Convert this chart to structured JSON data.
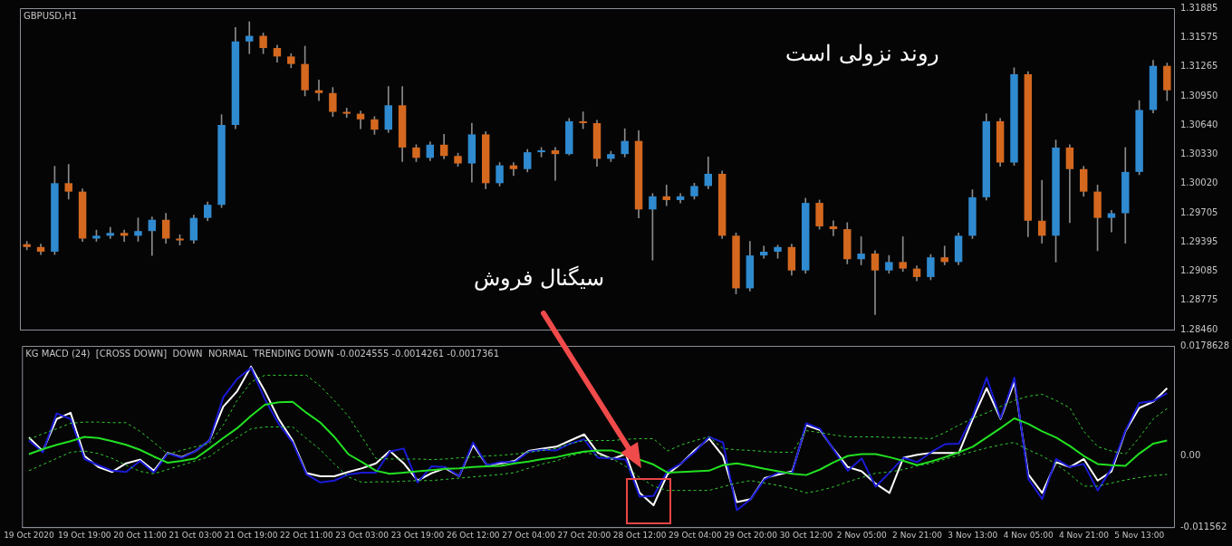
{
  "chart_data": [
    {
      "type": "candlestick",
      "title": "GBPUSD,H1",
      "annotations": [
        "روند نزولی است",
        "سیگنال فروش"
      ],
      "tick_labels": "y",
      "ylim": [
        1.2846,
        1.31885
      ],
      "categories": [
        null,
        null,
        null,
        null,
        null,
        null,
        null,
        null,
        null,
        null,
        null,
        null,
        null,
        null,
        null,
        null,
        null,
        null,
        null,
        null,
        null,
        null,
        null,
        null,
        null,
        null,
        null,
        null,
        null,
        null,
        null,
        null,
        null,
        null,
        null,
        null,
        null,
        null,
        null,
        null,
        null,
        null,
        null,
        null,
        null,
        null,
        null,
        null,
        null,
        null,
        null,
        null,
        null,
        null,
        null,
        null,
        null,
        null,
        null,
        null,
        null,
        null,
        null,
        null,
        null,
        null,
        null,
        null,
        null,
        null,
        null,
        null,
        null,
        null,
        null,
        null,
        null,
        null,
        null,
        null,
        null,
        null,
        null
      ],
      "yticks": [
        1.31885,
        1.31575,
        1.31265,
        {
          "value": 1.3095,
          "label": "1.30950"
        },
        {
          "value": 1.3064,
          "label": "1.30640"
        },
        {
          "value": 1.3033,
          "label": "1.30330"
        },
        {
          "value": 1.3002,
          "label": "1.30020"
        },
        1.29705,
        1.29395,
        1.29085,
        1.28775,
        {
          "value": 1.2846,
          "label": "1.28460"
        }
      ],
      "ohlc": [
        [
          1.2937,
          1.294,
          1.2931,
          1.2934
        ],
        [
          1.2934,
          1.2937,
          1.2926,
          1.2929
        ],
        [
          1.2929,
          1.302,
          1.2926,
          1.3002
        ],
        [
          1.3002,
          1.3022,
          1.2985,
          1.2993
        ],
        [
          1.2993,
          1.2996,
          1.294,
          1.2943
        ],
        [
          1.2943,
          1.2952,
          1.294,
          1.2946
        ],
        [
          1.2946,
          1.2955,
          1.2943,
          1.2949
        ],
        [
          1.2949,
          1.2952,
          1.294,
          1.2946
        ],
        [
          1.2946,
          1.2965,
          1.294,
          1.2951
        ],
        [
          1.2951,
          1.2966,
          1.2925,
          1.2963
        ],
        [
          1.2963,
          1.297,
          1.2938,
          1.2943
        ],
        [
          1.2943,
          1.2947,
          1.2936,
          1.2941
        ],
        [
          1.2941,
          1.2968,
          1.2938,
          1.2965
        ],
        [
          1.2965,
          1.2982,
          1.2962,
          1.2979
        ],
        [
          1.2979,
          1.3075,
          1.2976,
          1.3064
        ],
        [
          1.3064,
          1.3168,
          1.306,
          1.3153
        ],
        [
          1.3153,
          1.3174,
          1.314,
          1.3159
        ],
        [
          1.3159,
          1.3162,
          1.314,
          1.3146
        ],
        [
          1.3146,
          1.3149,
          1.3131,
          1.3137
        ],
        [
          1.3137,
          1.314,
          1.3125,
          1.3129
        ],
        [
          1.3129,
          1.3148,
          1.3095,
          1.3101
        ],
        [
          1.3101,
          1.3112,
          1.309,
          1.3098
        ],
        [
          1.3098,
          1.3104,
          1.3073,
          1.3078
        ],
        [
          1.3078,
          1.3082,
          1.3072,
          1.3076
        ],
        [
          1.3076,
          1.3079,
          1.306,
          1.307
        ],
        [
          1.307,
          1.3073,
          1.3054,
          1.3059
        ],
        [
          1.3059,
          1.3105,
          1.3056,
          1.3085
        ],
        [
          1.3085,
          1.3105,
          1.3025,
          1.304
        ],
        [
          1.304,
          1.3043,
          1.3025,
          1.3029
        ],
        [
          1.3029,
          1.3046,
          1.3026,
          1.3043
        ],
        [
          1.3043,
          1.3054,
          1.3028,
          1.3031
        ],
        [
          1.3031,
          1.3034,
          1.302,
          1.3023
        ],
        [
          1.3023,
          1.3066,
          1.3003,
          1.3054
        ],
        [
          1.3054,
          1.3057,
          1.2996,
          1.3002
        ],
        [
          1.3002,
          1.3024,
          1.2999,
          1.3021
        ],
        [
          1.3021,
          1.3024,
          1.301,
          1.3017
        ],
        [
          1.3017,
          1.3038,
          1.3014,
          1.3035
        ],
        [
          1.3035,
          1.304,
          1.303,
          1.3037
        ],
        [
          1.3037,
          1.304,
          1.3005,
          1.3033
        ],
        [
          1.3033,
          1.3071,
          1.3032,
          1.3068
        ],
        [
          1.3068,
          1.3078,
          1.306,
          1.3066
        ],
        [
          1.3066,
          1.3069,
          1.302,
          1.3028
        ],
        [
          1.3028,
          1.3036,
          1.3025,
          1.3033
        ],
        [
          1.3033,
          1.306,
          1.303,
          1.3047
        ],
        [
          1.3047,
          1.3058,
          1.2965,
          1.2974
        ],
        [
          1.2974,
          1.2991,
          1.292,
          1.2988
        ],
        [
          1.2988,
          1.3,
          1.2978,
          1.2984
        ],
        [
          1.2984,
          1.2991,
          1.2981,
          1.2988
        ],
        [
          1.2988,
          1.3002,
          1.2985,
          1.2999
        ],
        [
          1.2999,
          1.303,
          1.2996,
          1.3012
        ],
        [
          1.3012,
          1.3015,
          1.2943,
          1.2946
        ],
        [
          1.2946,
          1.2949,
          1.2884,
          1.289
        ],
        [
          1.289,
          1.294,
          1.2887,
          1.2925
        ],
        [
          1.2925,
          1.2935,
          1.2922,
          1.2929
        ],
        [
          1.2929,
          1.2936,
          1.2922,
          1.2934
        ],
        [
          1.2934,
          1.2937,
          1.2904,
          1.2909
        ],
        [
          1.2909,
          1.2986,
          1.2906,
          1.2981
        ],
        [
          1.2981,
          1.2984,
          1.2953,
          1.2956
        ],
        [
          1.2956,
          1.2962,
          1.2946,
          1.2953
        ],
        [
          1.2953,
          1.296,
          1.2916,
          1.2921
        ],
        [
          1.2921,
          1.2945,
          1.2915,
          1.2927
        ],
        [
          1.2927,
          1.293,
          1.2862,
          1.2909
        ],
        [
          1.2909,
          1.2925,
          1.2906,
          1.2918
        ],
        [
          1.2918,
          1.2945,
          1.2908,
          1.2911
        ],
        [
          1.2911,
          1.2914,
          1.2898,
          1.2902
        ],
        [
          1.2902,
          1.2926,
          1.2899,
          1.2923
        ],
        [
          1.2923,
          1.2935,
          1.2915,
          1.2918
        ],
        [
          1.2918,
          1.2949,
          1.2915,
          1.2946
        ],
        [
          1.2946,
          1.2995,
          1.2943,
          1.2987
        ],
        [
          1.2987,
          1.3076,
          1.2984,
          1.3068
        ],
        [
          1.3068,
          1.3071,
          1.302,
          1.3024
        ],
        [
          1.3024,
          1.3125,
          1.3021,
          1.3118
        ],
        [
          1.3118,
          1.3121,
          1.2945,
          1.2962
        ],
        [
          1.2962,
          1.3005,
          1.2938,
          1.2946
        ],
        [
          1.2946,
          1.3048,
          1.2918,
          1.304
        ],
        [
          1.304,
          1.3043,
          1.296,
          1.3017
        ],
        [
          1.3017,
          1.302,
          1.2988,
          1.2993
        ],
        [
          1.2993,
          1.3,
          1.293,
          1.2965
        ],
        [
          1.2965,
          1.2973,
          1.295,
          1.297
        ],
        [
          1.297,
          1.304,
          1.2938,
          1.3014
        ],
        [
          1.3014,
          1.309,
          1.3011,
          1.308
        ],
        [
          1.308,
          1.3133,
          1.3077,
          1.3127
        ],
        [
          1.3127,
          1.313,
          1.309,
          1.3101
        ]
      ]
    },
    {
      "type": "line",
      "title": "KG MACD (24)  [CROSS DOWN]  DOWN  NORMAL  TRENDING DOWN -0.0024555 -0.0014261 -0.0017361",
      "ylim": [
        -0.011562,
        0.0178628
      ],
      "yticks": [
        0.0178628,
        {
          "value": 0,
          "label": "0.00"
        },
        -0.011562
      ],
      "categories": [
        "19 Oct 2020",
        null,
        null,
        null,
        "19 Oct 19:00",
        null,
        null,
        null,
        "20 Oct 11:00",
        null,
        null,
        null,
        "21 Oct 03:00",
        null,
        null,
        null,
        "21 Oct 19:00",
        null,
        null,
        null,
        "22 Oct 11:00",
        null,
        null,
        null,
        "23 Oct 03:00",
        null,
        null,
        null,
        "23 Oct 19:00",
        null,
        null,
        null,
        "26 Oct 12:00",
        null,
        null,
        null,
        "27 Oct 04:00",
        null,
        null,
        null,
        "27 Oct 20:00",
        null,
        null,
        null,
        "28 Oct 12:00",
        null,
        null,
        null,
        "29 Oct 04:00",
        null,
        null,
        null,
        "29 Oct 20:00",
        null,
        null,
        null,
        "30 Oct 12:00",
        null,
        null,
        null,
        "2 Nov 05:00",
        null,
        null,
        null,
        "2 Nov 21:00",
        null,
        null,
        null,
        "3 Nov 13:00",
        null,
        null,
        null,
        "4 Nov 05:00",
        null,
        null,
        null,
        "4 Nov 21:00",
        null,
        null,
        null,
        "5 Nov 13:00",
        null,
        null
      ],
      "series": [
        {
          "color": "#ffffff",
          "values": [
            0.003,
            0.0008,
            0.006,
            0.007,
            0,
            -0.0018,
            -0.0026,
            -0.0012,
            -0.0006,
            -0.0024,
            0.0005,
            -0.0002,
            0.0008,
            0.0025,
            0.008,
            0.0105,
            0.0145,
            0.0105,
            0.006,
            0.0025,
            -0.0028,
            -0.0033,
            -0.0033,
            -0.0026,
            -0.002,
            -0.0012,
            0.0008,
            -0.0012,
            -0.004,
            -0.0028,
            -0.002,
            -0.0033,
            0.0018,
            -0.0015,
            -0.0012,
            -0.0008,
            0.0008,
            0.0012,
            0.0015,
            0.0025,
            0.0035,
            0.0005,
            -0.0005,
            0.0003,
            -0.006,
            -0.008,
            -0.003,
            -0.0012,
            0.001,
            0.0028,
            0,
            -0.0075,
            -0.007,
            -0.0036,
            -0.003,
            -0.0025,
            0.005,
            0.0042,
            0.001,
            -0.0018,
            -0.0025,
            -0.0045,
            -0.006,
            -0.0003,
            0.0002,
            0.0005,
            0.0005,
            0.0005,
            0.006,
            0.011,
            0.006,
            0.012,
            -0.003,
            -0.006,
            -0.001,
            -0.0018,
            -0.0005,
            -0.004,
            -0.0025,
            0.004,
            0.0078,
            0.0088,
            0.011
          ]
        },
        {
          "color": "#1a1ad6",
          "values": [
            0.0025,
            0.0006,
            0.0069,
            0.006,
            -0.0005,
            -0.0015,
            -0.0024,
            -0.0026,
            -0.0008,
            -0.0027,
            0.0004,
            -0.0003,
            0.0008,
            0.0025,
            0.0095,
            0.0125,
            0.0143,
            0.0092,
            0.0052,
            0.0022,
            -0.003,
            -0.0043,
            -0.004,
            -0.003,
            -0.0027,
            -0.0027,
            0.0007,
            0.0012,
            -0.0043,
            -0.0017,
            -0.0018,
            -0.0033,
            0.0022,
            -0.0015,
            -0.001,
            -0.001,
            0.0007,
            0.001,
            0.0009,
            0.002,
            0.0027,
            -0.0003,
            -0.0004,
            -0.0006,
            -0.0066,
            -0.0065,
            -0.0025,
            -0.0012,
            0.0007,
            0.0031,
            0.0022,
            -0.0088,
            -0.007,
            -0.0038,
            -0.0027,
            -0.0027,
            0.0053,
            0.0044,
            0.0009,
            -0.0024,
            -0.0004,
            -0.005,
            -0.0027,
            -0.0003,
            -0.001,
            0.0006,
            0.0019,
            0.002,
            0.0065,
            0.0127,
            0.0061,
            0.0127,
            -0.0037,
            -0.007,
            -0.0005,
            -0.0018,
            -0.0013,
            -0.0056,
            -0.002,
            0.0041,
            0.0086,
            0.0089,
            0.0102
          ]
        },
        {
          "color": "#22e022",
          "values": [
            0.0003,
            0.0011,
            0.0018,
            0.0024,
            0.0031,
            0.0029,
            0.0024,
            0.0018,
            0.001,
            -0.0001,
            -0.0011,
            -0.0008,
            -0.0004,
            0.0012,
            0.0029,
            0.0045,
            0.0065,
            0.0083,
            0.0087,
            0.0088,
            0.007,
            0.0054,
            0.0031,
            0.0003,
            -0.001,
            -0.0024,
            -0.0029,
            -0.0027,
            -0.0025,
            -0.0023,
            -0.0021,
            -0.002,
            -0.0018,
            -0.0017,
            -0.0016,
            -0.0012,
            -0.0009,
            -0.0005,
            -0.0002,
            0.0003,
            0.0007,
            0.0009,
            0.0009,
            0.0002,
            -0.0006,
            -0.0014,
            -0.0027,
            -0.0026,
            -0.0025,
            -0.0024,
            -0.0015,
            -0.0012,
            -0.0016,
            -0.0021,
            -0.0025,
            -0.0029,
            -0.0031,
            -0.0022,
            -0.001,
            0,
            0.0003,
            0.0003,
            -0.0002,
            -0.0008,
            -0.0015,
            -0.0009,
            -0.0002,
            0.0006,
            0.0015,
            0.003,
            0.0045,
            0.0061,
            0.0052,
            0.004,
            0.003,
            0.0016,
            0,
            -0.0013,
            -0.0015,
            -0.0016,
            0.0004,
            0.002,
            0.0025
          ]
        },
        {
          "color": "#33cc33",
          "line_style": "dashed",
          "values": [
            0.0027,
            0.0036,
            0.0044,
            0.0053,
            0.0055,
            0.0055,
            0.0054,
            0.0054,
            0.004,
            0.0022,
            0.0003,
            0.0009,
            0.0015,
            0.002,
            0.005,
            0.009,
            0.012,
            0.0131,
            0.0131,
            0.0131,
            0.0131,
            0.0113,
            0.009,
            0.0065,
            0.003,
            -0.0004,
            -0.0005,
            -0.0005,
            -0.0005,
            -0.0006,
            -0.0005,
            -0.0003,
            -0.0002,
            0,
            0.0001,
            0.0003,
            0.0006,
            0.0009,
            0.0012,
            0.002,
            0.0025,
            0.0025,
            0.0025,
            0.0027,
            0.0028,
            0.0028,
            0.0008,
            0.0018,
            0.0025,
            0.0031,
            0.0012,
            0.001,
            0.0009,
            0.0007,
            0.0006,
            0.0006,
            0.0041,
            0.0038,
            0.0034,
            0.0031,
            0.0031,
            0.0031,
            0.003,
            0.003,
            0.0029,
            0.0028,
            0.0038,
            0.005,
            0.0061,
            0.007,
            0.008,
            0.009,
            0.0097,
            0.01,
            0.009,
            0.0078,
            0.004,
            0.0015,
            0.0008,
            0.0003,
            0.003,
            0.006,
            0.0077
          ]
        },
        {
          "color": "#33cc33",
          "line_style": "dashed",
          "values": [
            -0.0024,
            -0.0014,
            -0.0004,
            0.0006,
            0.0008,
            0.0004,
            -0.0004,
            -0.0015,
            -0.0025,
            -0.0029,
            -0.0022,
            -0.0015,
            -0.0008,
            -0.0001,
            0.0015,
            0.003,
            0.0044,
            0.0047,
            0.0047,
            0.0047,
            0.0028,
            0.001,
            -0.0013,
            -0.0034,
            -0.0043,
            -0.0042,
            -0.0042,
            -0.0041,
            -0.004,
            -0.004,
            -0.0038,
            -0.0036,
            -0.0034,
            -0.0032,
            -0.003,
            -0.0027,
            -0.002,
            -0.0013,
            -0.0008,
            0,
            0.0006,
            0.0001,
            -0.0004,
            -0.0017,
            -0.0035,
            -0.0049,
            -0.0056,
            -0.0056,
            -0.0056,
            -0.0056,
            -0.005,
            -0.0044,
            -0.004,
            -0.0044,
            -0.0048,
            -0.0053,
            -0.006,
            -0.0056,
            -0.005,
            -0.0042,
            -0.0035,
            -0.0028,
            -0.0026,
            -0.0022,
            -0.0016,
            -0.0012,
            -0.0005,
            0.0001,
            0.0007,
            0.0013,
            0.0018,
            0.0022,
            0.001,
            0,
            -0.0013,
            -0.003,
            -0.0049,
            -0.0049,
            -0.0044,
            -0.0039,
            -0.0035,
            -0.0032,
            -0.003
          ]
        }
      ]
    }
  ]
}
